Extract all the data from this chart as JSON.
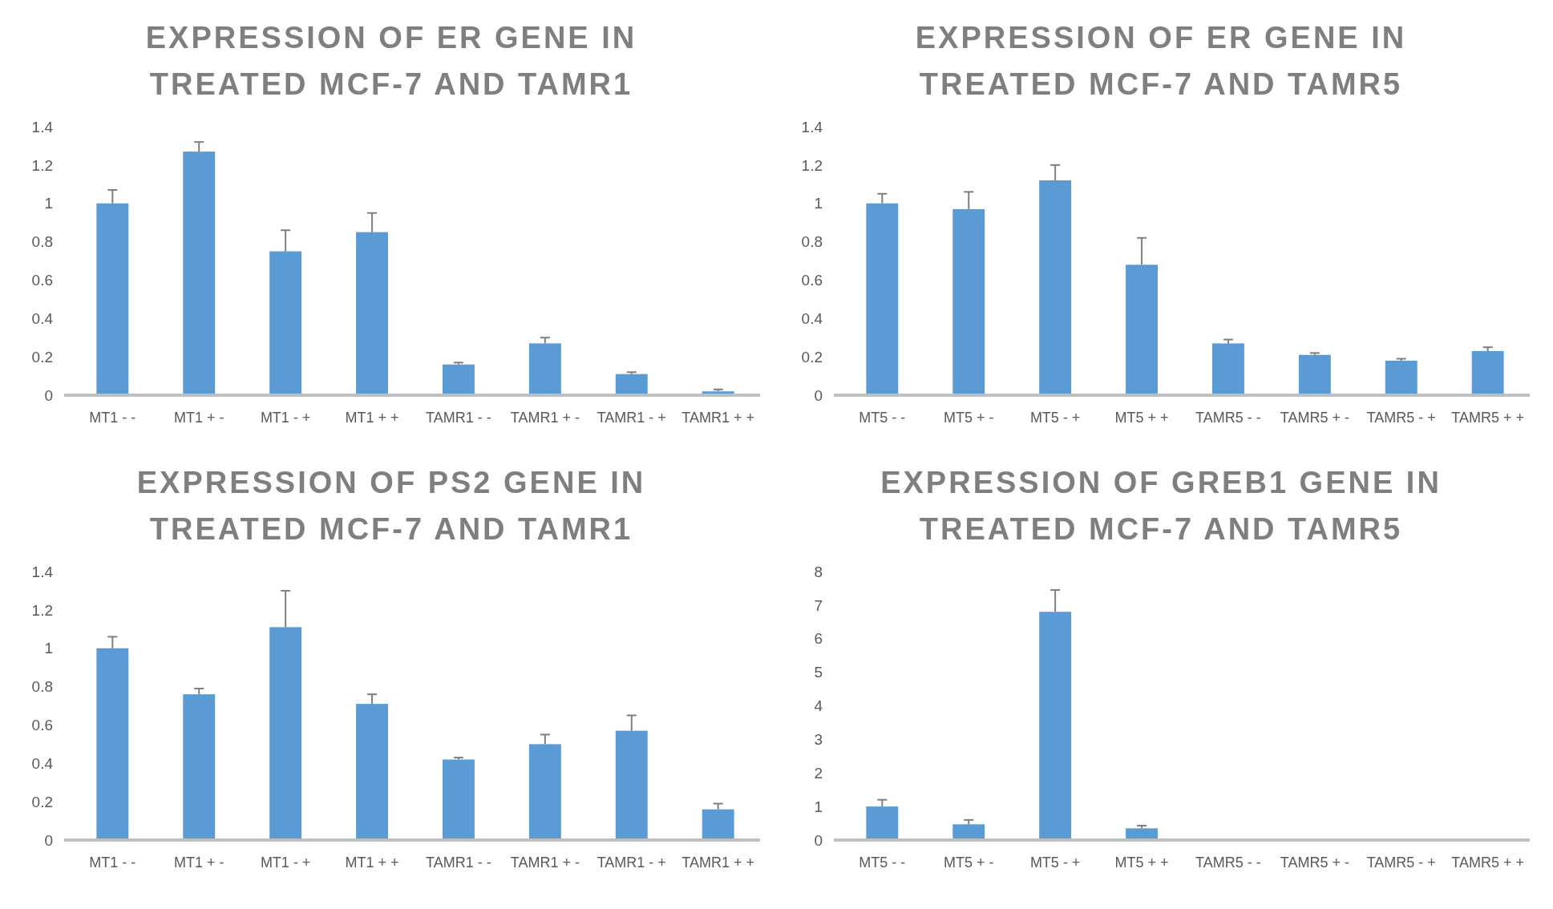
{
  "chart_data": [
    {
      "type": "bar",
      "title": "EXPRESSION OF ER GENE IN TREATED MCF-7 AND TAMR1",
      "categories": [
        "MT1 - -",
        "MT1 + -",
        "MT1 - +",
        "MT1 + +",
        "TAMR1 - -",
        "TAMR1 + -",
        "TAMR1 - +",
        "TAMR1 + +"
      ],
      "values": [
        1.0,
        1.27,
        0.75,
        0.85,
        0.16,
        0.27,
        0.11,
        0.02
      ],
      "errors": [
        [
          1.0,
          1.07
        ],
        [
          1.27,
          1.32
        ],
        [
          0.75,
          0.86
        ],
        [
          0.85,
          0.95
        ],
        [
          0.16,
          0.17
        ],
        [
          0.27,
          0.3
        ],
        [
          0.11,
          0.12
        ],
        [
          0.02,
          0.03
        ]
      ],
      "color": "#5b9bd5",
      "ylim": [
        0,
        1.4
      ],
      "yticks": [
        0,
        {
          "value": 0.2,
          "label": "0.2"
        },
        {
          "value": 0.4,
          "label": "0.4"
        },
        {
          "value": 0.6,
          "label": "0.6"
        },
        {
          "value": 0.8,
          "label": "0.8"
        },
        1,
        {
          "value": 1.2,
          "label": "1.2"
        },
        {
          "value": 1.4,
          "label": "1.4"
        }
      ],
      "grid": false
    },
    {
      "type": "bar",
      "title": "EXPRESSION OF ER GENE IN TREATED MCF-7 AND TAMR5",
      "categories": [
        "MT5 - -",
        "MT5 + -",
        "MT5 - +",
        "MT5 + +",
        "TAMR5 - -",
        "TAMR5 + -",
        "TAMR5 - +",
        "TAMR5 + +"
      ],
      "values": [
        1.0,
        0.97,
        1.12,
        0.68,
        0.27,
        0.21,
        0.18,
        0.23
      ],
      "errors": [
        [
          1.0,
          1.05
        ],
        [
          0.97,
          1.06
        ],
        [
          1.12,
          1.2
        ],
        [
          0.68,
          0.82
        ],
        [
          0.27,
          0.29
        ],
        [
          0.21,
          0.22
        ],
        [
          0.18,
          0.19
        ],
        [
          0.23,
          0.25
        ]
      ],
      "color": "#5b9bd5",
      "ylim": [
        0,
        1.4
      ],
      "yticks": [
        0,
        {
          "value": 0.2,
          "label": "0.2"
        },
        {
          "value": 0.4,
          "label": "0.4"
        },
        {
          "value": 0.6,
          "label": "0.6"
        },
        {
          "value": 0.8,
          "label": "0.8"
        },
        1,
        {
          "value": 1.2,
          "label": "1.2"
        },
        {
          "value": 1.4,
          "label": "1.4"
        }
      ],
      "grid": false
    },
    {
      "type": "bar",
      "title": "EXPRESSION OF PS2 GENE IN TREATED MCF-7 AND TAMR1",
      "categories": [
        "MT1 - -",
        "MT1 + -",
        "MT1 - +",
        "MT1 + +",
        "TAMR1 - -",
        "TAMR1 + -",
        "TAMR1 - +",
        "TAMR1 + +"
      ],
      "values": [
        1.0,
        0.76,
        1.11,
        0.71,
        0.42,
        0.5,
        0.57,
        0.16
      ],
      "errors": [
        [
          1.0,
          1.06
        ],
        [
          0.76,
          0.79
        ],
        [
          1.11,
          1.3
        ],
        [
          0.71,
          0.76
        ],
        [
          0.42,
          0.43
        ],
        [
          0.5,
          0.55
        ],
        [
          0.57,
          0.65
        ],
        [
          0.16,
          0.19
        ]
      ],
      "color": "#5b9bd5",
      "ylim": [
        0,
        1.4
      ],
      "yticks": [
        0,
        {
          "value": 0.2,
          "label": "0.2"
        },
        {
          "value": 0.4,
          "label": "0.4"
        },
        {
          "value": 0.6,
          "label": "0.6"
        },
        {
          "value": 0.8,
          "label": "0.8"
        },
        1,
        {
          "value": 1.2,
          "label": "1.2"
        },
        {
          "value": 1.4,
          "label": "1.4"
        }
      ],
      "grid": false
    },
    {
      "type": "bar",
      "title": "EXPRESSION OF GREB1 GENE IN TREATED MCF-7 AND TAMR5",
      "categories": [
        "MT5 - -",
        "MT5 + -",
        "MT5 - +",
        "MT5 + +",
        "TAMR5 - -",
        "TAMR5 + -",
        "TAMR5 - +",
        "TAMR5 + +"
      ],
      "values": [
        1.0,
        0.47,
        6.8,
        0.35,
        0,
        0,
        0,
        0
      ],
      "errors": [
        [
          1.0,
          1.2
        ],
        [
          0.47,
          0.6
        ],
        [
          6.8,
          7.45
        ],
        [
          0.35,
          0.43
        ],
        null,
        null,
        null,
        null
      ],
      "color": "#5b9bd5",
      "ylim": [
        0,
        8
      ],
      "yticks": [
        0,
        1,
        2,
        3,
        4,
        5,
        6,
        7,
        8
      ],
      "grid": false
    }
  ]
}
